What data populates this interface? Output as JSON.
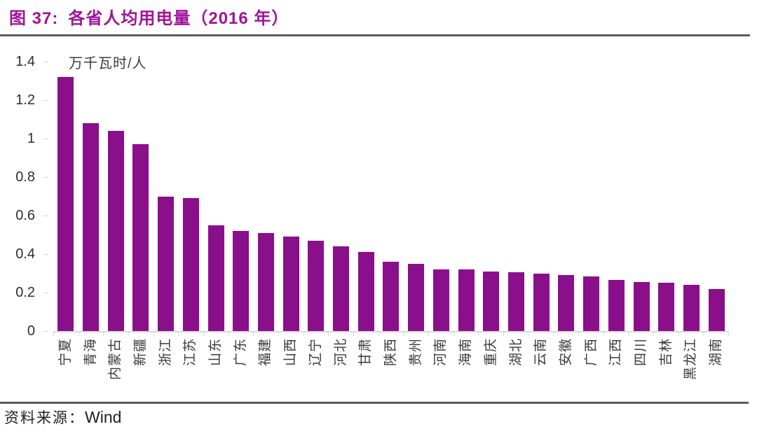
{
  "figure": {
    "title_prefix": "图 37:",
    "title_main": "各省人均用电量（2016 年）",
    "source_label": "资料来源：",
    "source_value": "Wind"
  },
  "chart_data": {
    "type": "bar",
    "title": "各省人均用电量（2016 年）",
    "unit_label": "万千瓦时/人",
    "categories": [
      "宁夏",
      "青海",
      "内蒙古",
      "新疆",
      "浙江",
      "江苏",
      "山东",
      "广东",
      "福建",
      "山西",
      "辽宁",
      "河北",
      "甘肃",
      "陕西",
      "贵州",
      "河南",
      "海南",
      "重庆",
      "湖北",
      "云南",
      "安徽",
      "广西",
      "江西",
      "四川",
      "吉林",
      "黑龙江",
      "湖南"
    ],
    "values": [
      1.32,
      1.08,
      1.04,
      0.97,
      0.7,
      0.69,
      0.55,
      0.52,
      0.51,
      0.49,
      0.47,
      0.44,
      0.41,
      0.36,
      0.35,
      0.32,
      0.32,
      0.31,
      0.305,
      0.3,
      0.29,
      0.285,
      0.265,
      0.255,
      0.25,
      0.24,
      0.22
    ],
    "xlabel": "",
    "ylabel": "万千瓦时/人",
    "ylim": [
      0,
      1.4
    ],
    "ytick_labels": [
      "0",
      "0.2",
      "0.4",
      "0.6",
      "0.8",
      "1",
      "1.2",
      "1.4"
    ],
    "grid": false,
    "legend_position": "none",
    "bar_color": "#8a0f8b"
  },
  "colors": {
    "title": "#a0139b",
    "rule": "#5b5b5b",
    "axis_text": "#2e2e2e",
    "axis_line": "#d9d9d9",
    "source_text": "#1f1f1f"
  }
}
